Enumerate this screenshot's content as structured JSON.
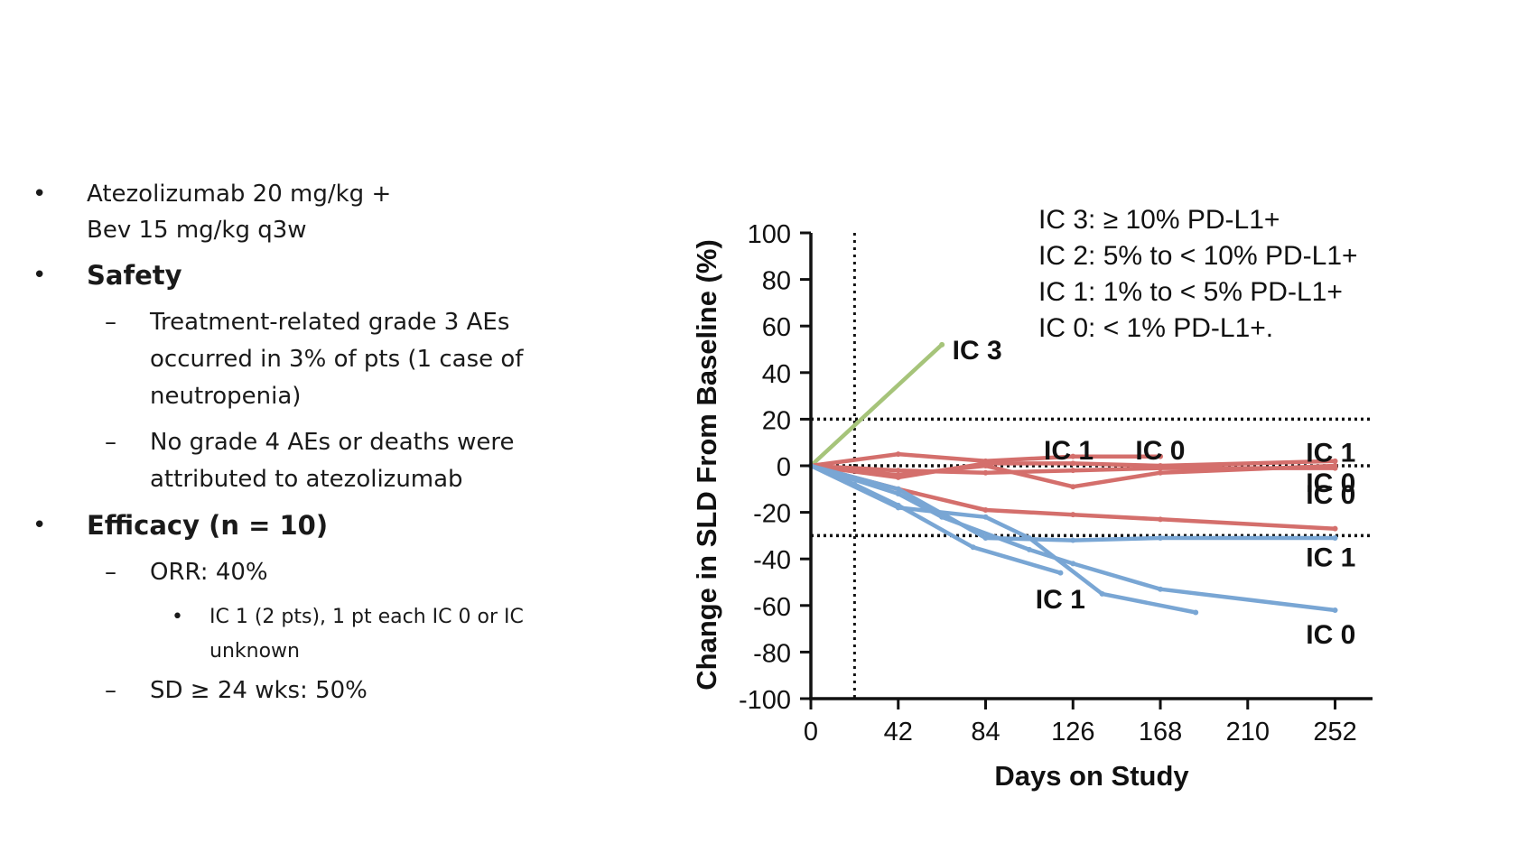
{
  "bullets": {
    "dosing": "Atezolizumab 20 mg/kg +\nBev 15 mg/kg q3w",
    "safety": {
      "title": "Safety",
      "items": [
        "Treatment-related grade 3 AEs\noccurred in 3% of pts (1 case of\nneutropenia)",
        "No grade 4 AEs or deaths were\nattributed to atezolizumab"
      ]
    },
    "efficacy": {
      "title": "Efficacy (n = 10)",
      "orr": "ORR: 40%",
      "orr_detail": "IC 1 (2 pts), 1 pt each IC 0 or IC\nunknown",
      "sd": "SD ≥ 24 wks: 50%"
    }
  },
  "chart_data": {
    "type": "line",
    "xlabel": "Days on Study",
    "ylabel": "Change in SLD From Baseline (%)",
    "xticks": [
      "0",
      "42",
      "84",
      "126",
      "168",
      "210",
      "252"
    ],
    "yticks": [
      "100",
      "80",
      "60",
      "40",
      "20",
      "0",
      "-20",
      "-40",
      "-60",
      "-80",
      "-100"
    ],
    "xlim": [
      0,
      270
    ],
    "ylim": [
      -100,
      100
    ],
    "reference_lines": {
      "vertical_x": 21,
      "horizontal_y": [
        20,
        0,
        -30
      ]
    },
    "legend_text": [
      "IC 3: ≥ 10% PD-L1+",
      "IC 2: 5% to < 10% PD-L1+",
      "IC 1: 1% to < 5% PD-L1+",
      "IC 0: < 1% PD-L1+."
    ],
    "colors": {
      "green": "#a6c47a",
      "red": "#d46f6c",
      "blue": "#79a6d4"
    },
    "series": [
      {
        "color": "green",
        "points": [
          [
            0,
            0
          ],
          [
            63,
            52
          ]
        ]
      },
      {
        "color": "red",
        "points": [
          [
            0,
            0
          ],
          [
            42,
            5
          ],
          [
            84,
            2
          ],
          [
            126,
            4
          ],
          [
            168,
            4
          ]
        ]
      },
      {
        "color": "red",
        "points": [
          [
            0,
            0
          ],
          [
            42,
            -5
          ],
          [
            84,
            1
          ],
          [
            126,
            1
          ],
          [
            168,
            0
          ],
          [
            252,
            2
          ]
        ]
      },
      {
        "color": "red",
        "points": [
          [
            0,
            0
          ],
          [
            42,
            -4
          ],
          [
            84,
            0
          ],
          [
            126,
            -9
          ],
          [
            168,
            -3
          ],
          [
            252,
            0
          ]
        ]
      },
      {
        "color": "red",
        "points": [
          [
            0,
            0
          ],
          [
            42,
            -2
          ],
          [
            84,
            -3
          ],
          [
            126,
            -2
          ],
          [
            168,
            -1
          ],
          [
            252,
            -1
          ]
        ]
      },
      {
        "color": "red",
        "points": [
          [
            0,
            0
          ],
          [
            42,
            -10
          ],
          [
            84,
            -19
          ],
          [
            126,
            -21
          ],
          [
            168,
            -23
          ],
          [
            252,
            -27
          ]
        ]
      },
      {
        "color": "blue",
        "points": [
          [
            0,
            0
          ],
          [
            42,
            -10
          ],
          [
            84,
            -31
          ],
          [
            126,
            -32
          ],
          [
            168,
            -31
          ],
          [
            252,
            -31
          ]
        ]
      },
      {
        "color": "blue",
        "points": [
          [
            0,
            0
          ],
          [
            21,
            -8
          ],
          [
            42,
            -17
          ],
          [
            78,
            -35
          ],
          [
            120,
            -46
          ]
        ]
      },
      {
        "color": "blue",
        "points": [
          [
            0,
            0
          ],
          [
            42,
            -18
          ],
          [
            84,
            -22
          ],
          [
            105,
            -31
          ],
          [
            140,
            -55
          ],
          [
            185,
            -63
          ]
        ]
      },
      {
        "color": "blue",
        "points": [
          [
            0,
            0
          ],
          [
            42,
            -12
          ],
          [
            63,
            -22
          ],
          [
            105,
            -36
          ],
          [
            126,
            -42
          ],
          [
            168,
            -53
          ],
          [
            252,
            -62
          ]
        ]
      }
    ],
    "annotations": [
      {
        "text": "IC 3",
        "x": 68,
        "y": 50
      },
      {
        "text": "IC 1",
        "x": 112,
        "y": 7
      },
      {
        "text": "IC 0",
        "x": 156,
        "y": 7
      },
      {
        "text": "IC 1",
        "x": 238,
        "y": 6
      },
      {
        "text": "IC 0",
        "x": 238,
        "y": -7
      },
      {
        "text": "IC 0",
        "x": 238,
        "y": -12
      },
      {
        "text": "IC 1",
        "x": 238,
        "y": -39
      },
      {
        "text": "IC 1",
        "x": 108,
        "y": -57
      },
      {
        "text": "IC 0",
        "x": 238,
        "y": -72
      }
    ]
  }
}
